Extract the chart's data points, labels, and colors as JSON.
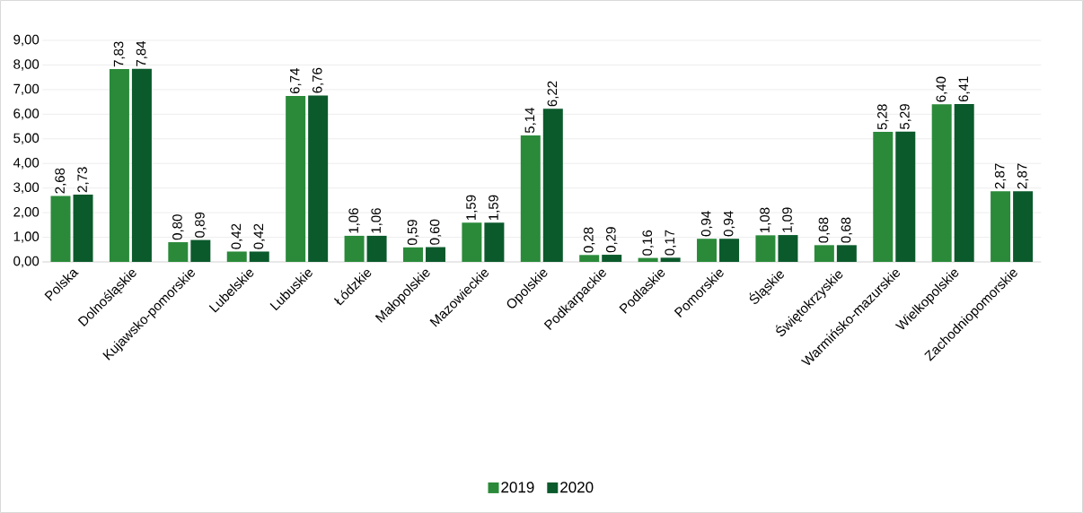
{
  "chart_data": {
    "type": "bar",
    "categories": [
      "Polska",
      "Dolnośląskie",
      "Kujawsko-pomorskie",
      "Lubelskie",
      "Lubuskie",
      "Łódzkie",
      "Małopolskie",
      "Mazowieckie",
      "Opolskie",
      "Podkarpackie",
      "Podlaskie",
      "Pomorskie",
      "Śląskie",
      "Świętokrzyskie",
      "Warmińsko-mazurskie",
      "Wielkopolskie",
      "Zachodniopomorskie"
    ],
    "series": [
      {
        "name": "2019",
        "color": "#2a8a3a",
        "values": [
          2.68,
          7.83,
          0.8,
          0.42,
          6.74,
          1.06,
          0.59,
          1.59,
          5.14,
          0.28,
          0.16,
          0.94,
          1.08,
          0.68,
          5.28,
          6.4,
          2.87
        ],
        "value_labels": [
          "2,68",
          "7,83",
          "0,80",
          "0,42",
          "6,74",
          "1,06",
          "0,59",
          "1,59",
          "5,14",
          "0,28",
          "0,16",
          "0,94",
          "1,08",
          "0,68",
          "5,28",
          "6,40",
          "2,87"
        ]
      },
      {
        "name": "2020",
        "color": "#0b5a2c",
        "values": [
          2.73,
          7.84,
          0.89,
          0.42,
          6.76,
          1.06,
          0.6,
          1.59,
          6.22,
          0.29,
          0.17,
          0.94,
          1.09,
          0.68,
          5.29,
          6.41,
          2.87
        ],
        "value_labels": [
          "2,73",
          "7,84",
          "0,89",
          "0,42",
          "6,76",
          "1,06",
          "0,60",
          "1,59",
          "6,22",
          "0,29",
          "0,17",
          "0,94",
          "1,09",
          "0,68",
          "5,29",
          "6,41",
          "2,87"
        ]
      }
    ],
    "ylim": [
      0,
      9
    ],
    "yticks": [
      {
        "value": 0,
        "label": "0,00"
      },
      {
        "value": 1,
        "label": "1,00"
      },
      {
        "value": 2,
        "label": "2,00"
      },
      {
        "value": 3,
        "label": "3,00"
      },
      {
        "value": 4,
        "label": "4,00"
      },
      {
        "value": 5,
        "label": "5,00"
      },
      {
        "value": 6,
        "label": "6,00"
      },
      {
        "value": 7,
        "label": "7,00"
      },
      {
        "value": 8,
        "label": "8,00"
      },
      {
        "value": 9,
        "label": "9,00"
      }
    ],
    "grid": "y",
    "legend": "bottom"
  }
}
